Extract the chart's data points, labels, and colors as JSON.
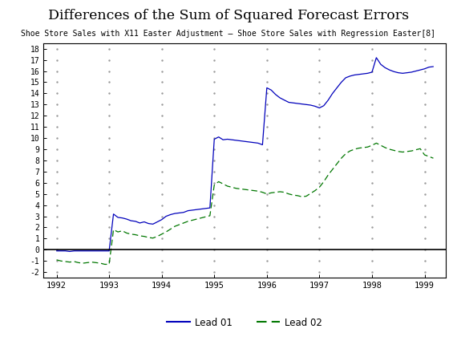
{
  "title": "Differences of the Sum of Squared Forecast Errors",
  "subtitle": "Shoe Store Sales with X11 Easter Adjustment — Shoe Store Sales with Regression Easter[8]",
  "ylim": [
    -2.5,
    18.5
  ],
  "yticks": [
    -2,
    -1,
    0,
    1,
    2,
    3,
    4,
    5,
    6,
    7,
    8,
    9,
    10,
    11,
    12,
    13,
    14,
    15,
    16,
    17,
    18
  ],
  "xlim_start": 1991.75,
  "xlim_end": 1999.4,
  "xtick_labels": [
    "1992",
    "1993",
    "1994",
    "1995",
    "1996",
    "1997",
    "1998",
    "1999"
  ],
  "xtick_positions": [
    1992,
    1993,
    1994,
    1995,
    1996,
    1997,
    1998,
    1999
  ],
  "dot_grid_x": [
    1992,
    1993,
    1994,
    1995,
    1996,
    1997,
    1998,
    1999
  ],
  "dot_grid_y": [
    -2,
    -1,
    0,
    1,
    2,
    3,
    4,
    5,
    6,
    7,
    8,
    9,
    10,
    11,
    12,
    13,
    14,
    15,
    16,
    17,
    18
  ],
  "bg_color": "#ffffff",
  "lead01_color": "#0000bb",
  "lead02_color": "#007700",
  "legend_lead01": "Lead 01",
  "legend_lead02": "Lead 02",
  "lead01_x": [
    1992.0,
    1992.083,
    1992.167,
    1992.25,
    1992.333,
    1992.417,
    1992.5,
    1992.583,
    1992.667,
    1992.75,
    1992.833,
    1992.917,
    1993.0,
    1993.083,
    1993.167,
    1993.25,
    1993.333,
    1993.417,
    1993.5,
    1993.583,
    1993.667,
    1993.75,
    1993.833,
    1993.917,
    1994.0,
    1994.083,
    1994.167,
    1994.25,
    1994.333,
    1994.417,
    1994.5,
    1994.583,
    1994.667,
    1994.75,
    1994.833,
    1994.917,
    1995.0,
    1995.083,
    1995.167,
    1995.25,
    1995.333,
    1995.417,
    1995.5,
    1995.583,
    1995.667,
    1995.75,
    1995.833,
    1995.917,
    1996.0,
    1996.083,
    1996.167,
    1996.25,
    1996.333,
    1996.417,
    1996.5,
    1996.583,
    1996.667,
    1996.75,
    1996.833,
    1996.917,
    1997.0,
    1997.083,
    1997.167,
    1997.25,
    1997.333,
    1997.417,
    1997.5,
    1997.583,
    1997.667,
    1997.75,
    1997.833,
    1997.917,
    1998.0,
    1998.083,
    1998.167,
    1998.25,
    1998.333,
    1998.417,
    1998.5,
    1998.583,
    1998.667,
    1998.75,
    1998.833,
    1998.917,
    1999.0,
    1999.083,
    1999.167
  ],
  "lead01_y": [
    -0.1,
    -0.1,
    -0.1,
    -0.15,
    -0.1,
    -0.1,
    -0.1,
    -0.1,
    -0.1,
    -0.1,
    -0.1,
    -0.1,
    -0.1,
    3.2,
    2.9,
    2.85,
    2.75,
    2.6,
    2.55,
    2.4,
    2.5,
    2.35,
    2.3,
    2.5,
    2.7,
    3.0,
    3.15,
    3.25,
    3.3,
    3.35,
    3.5,
    3.55,
    3.6,
    3.65,
    3.7,
    3.75,
    9.9,
    10.1,
    9.85,
    9.9,
    9.85,
    9.8,
    9.75,
    9.7,
    9.65,
    9.6,
    9.55,
    9.4,
    14.5,
    14.3,
    13.9,
    13.6,
    13.4,
    13.2,
    13.15,
    13.1,
    13.05,
    13.0,
    12.95,
    12.85,
    12.7,
    12.9,
    13.4,
    14.0,
    14.5,
    15.0,
    15.4,
    15.55,
    15.65,
    15.7,
    15.75,
    15.8,
    15.9,
    17.2,
    16.6,
    16.3,
    16.1,
    15.95,
    15.85,
    15.8,
    15.85,
    15.9,
    16.0,
    16.1,
    16.2,
    16.35,
    16.4
  ],
  "lead02_x": [
    1992.0,
    1992.083,
    1992.167,
    1992.25,
    1992.333,
    1992.417,
    1992.5,
    1992.583,
    1992.667,
    1992.75,
    1992.833,
    1992.917,
    1993.0,
    1993.083,
    1993.167,
    1993.25,
    1993.333,
    1993.417,
    1993.5,
    1993.583,
    1993.667,
    1993.75,
    1993.833,
    1993.917,
    1994.0,
    1994.083,
    1994.167,
    1994.25,
    1994.333,
    1994.417,
    1994.5,
    1994.583,
    1994.667,
    1994.75,
    1994.833,
    1994.917,
    1995.0,
    1995.083,
    1995.167,
    1995.25,
    1995.333,
    1995.417,
    1995.5,
    1995.583,
    1995.667,
    1995.75,
    1995.833,
    1995.917,
    1996.0,
    1996.083,
    1996.167,
    1996.25,
    1996.333,
    1996.417,
    1996.5,
    1996.583,
    1996.667,
    1996.75,
    1996.833,
    1996.917,
    1997.0,
    1997.083,
    1997.167,
    1997.25,
    1997.333,
    1997.417,
    1997.5,
    1997.583,
    1997.667,
    1997.75,
    1997.833,
    1997.917,
    1998.0,
    1998.083,
    1998.167,
    1998.25,
    1998.333,
    1998.417,
    1998.5,
    1998.583,
    1998.667,
    1998.75,
    1998.833,
    1998.917,
    1999.0,
    1999.083,
    1999.167
  ],
  "lead02_y": [
    -0.9,
    -1.0,
    -1.05,
    -1.1,
    -1.05,
    -1.15,
    -1.2,
    -1.15,
    -1.1,
    -1.15,
    -1.2,
    -1.3,
    -1.3,
    1.8,
    1.6,
    1.7,
    1.5,
    1.4,
    1.35,
    1.25,
    1.2,
    1.1,
    1.05,
    1.2,
    1.4,
    1.6,
    1.85,
    2.1,
    2.25,
    2.4,
    2.55,
    2.65,
    2.75,
    2.85,
    2.95,
    3.05,
    5.8,
    6.1,
    5.9,
    5.7,
    5.6,
    5.5,
    5.45,
    5.4,
    5.35,
    5.3,
    5.25,
    5.15,
    5.0,
    5.1,
    5.15,
    5.2,
    5.15,
    5.0,
    4.9,
    4.85,
    4.75,
    4.8,
    5.05,
    5.3,
    5.6,
    6.1,
    6.7,
    7.2,
    7.7,
    8.2,
    8.6,
    8.85,
    9.0,
    9.1,
    9.15,
    9.2,
    9.35,
    9.55,
    9.35,
    9.15,
    9.0,
    8.9,
    8.8,
    8.75,
    8.8,
    8.85,
    8.95,
    9.05,
    8.5,
    8.35,
    8.2
  ]
}
